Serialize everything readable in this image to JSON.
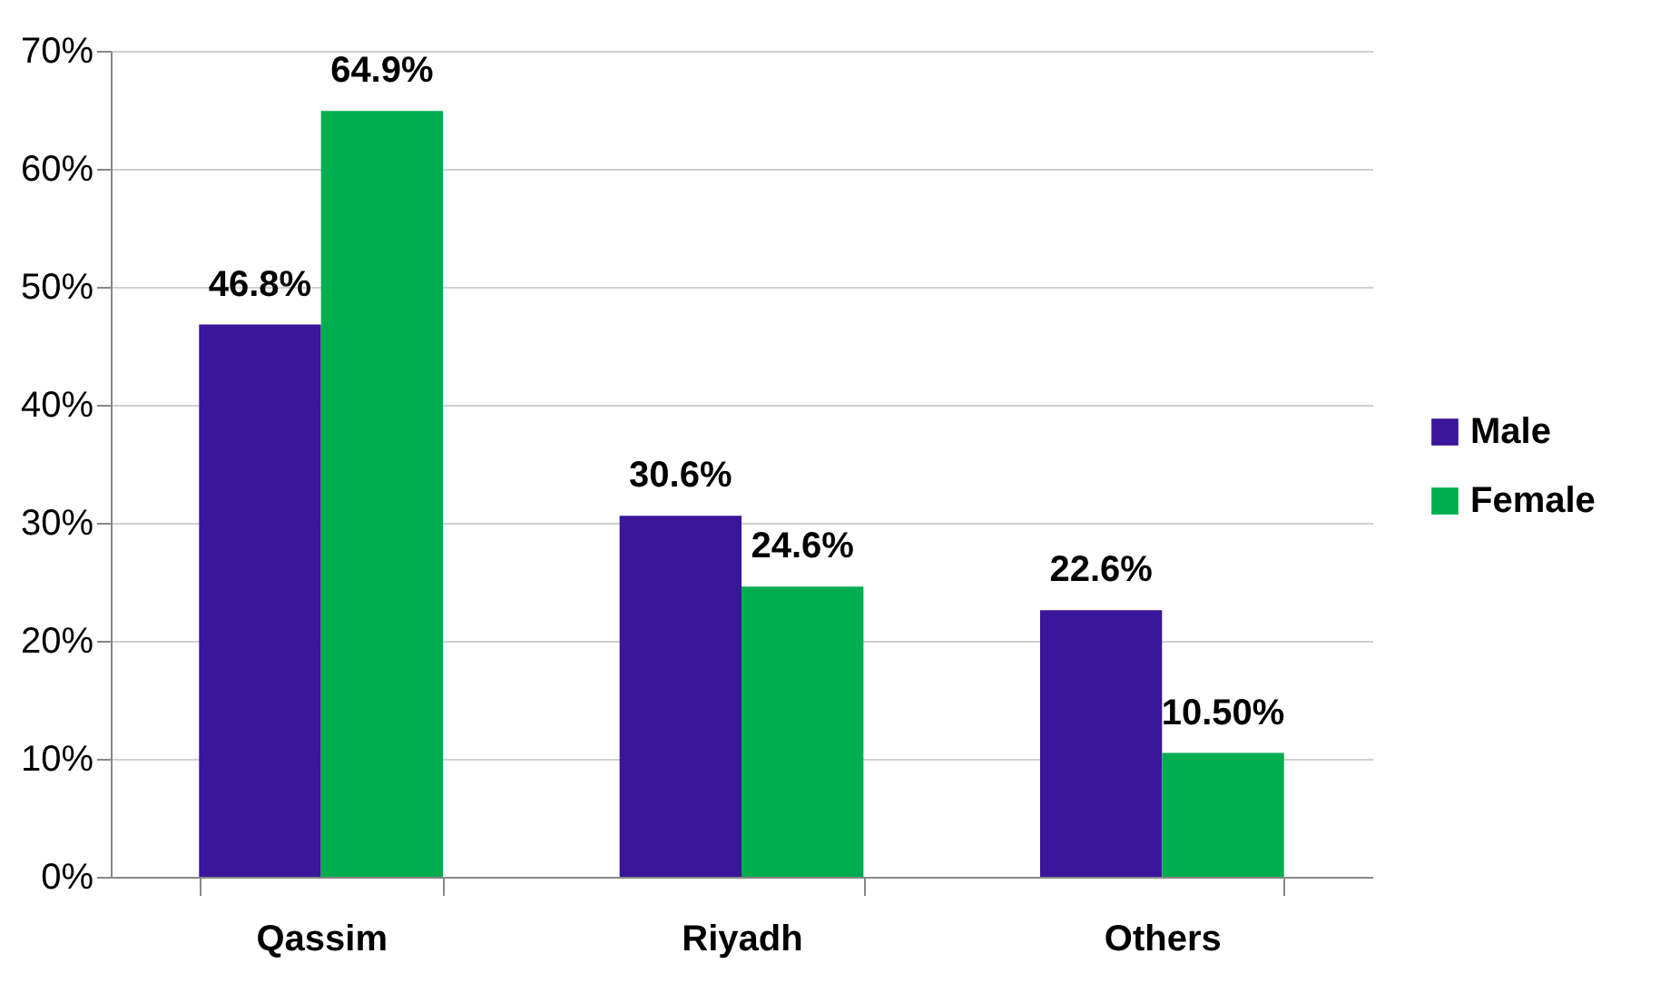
{
  "chart_data": {
    "type": "bar",
    "categories": [
      "Qassim",
      "Riyadh",
      "Others"
    ],
    "series": [
      {
        "name": "Male",
        "color": "#3a169a",
        "values": [
          46.8,
          30.6,
          22.6
        ],
        "value_labels": [
          "46.8%",
          "30.6%",
          "22.6%"
        ]
      },
      {
        "name": "Female",
        "color": "#00ae50",
        "values": [
          64.9,
          24.6,
          10.5
        ],
        "value_labels": [
          "64.9%",
          "24.6%",
          "10.50%"
        ]
      }
    ],
    "ylim": [
      0,
      70
    ],
    "yticks": [
      {
        "value": 0,
        "label": "0%"
      },
      {
        "value": 10,
        "label": "10%"
      },
      {
        "value": 20,
        "label": "20%"
      },
      {
        "value": 30,
        "label": "30%"
      },
      {
        "value": 40,
        "label": "40%"
      },
      {
        "value": 50,
        "label": "50%"
      },
      {
        "value": 60,
        "label": "60%"
      },
      {
        "value": 70,
        "label": "70%"
      }
    ],
    "grid": "y",
    "legend": "right"
  }
}
